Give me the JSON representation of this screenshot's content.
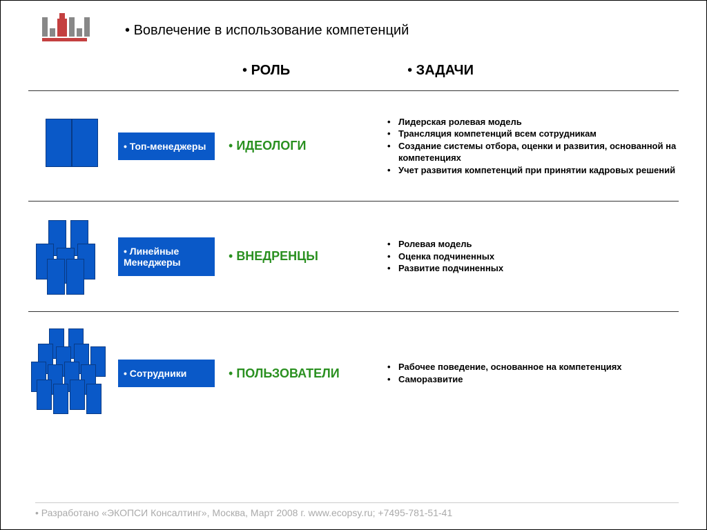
{
  "colors": {
    "block_blue": "#0a59c8",
    "role_green": "#2a9020",
    "logo_red": "#c44040",
    "text_black": "#000000",
    "footer_gray": "#aaaaaa",
    "background": "#ffffff"
  },
  "typography": {
    "title_fontsize_pt": 15,
    "header_fontsize_pt": 15,
    "role_fontsize_pt": 14,
    "group_fontsize_pt": 11,
    "task_fontsize_pt": 10,
    "footer_fontsize_pt": 11,
    "font_family": "Arial"
  },
  "title": "Вовлечение в использование компетенций",
  "col_headers": {
    "role": "РОЛЬ",
    "tasks": "ЗАДАЧИ"
  },
  "rows": [
    {
      "group": "Топ-менеджеры",
      "role": "ИДЕОЛОГИ",
      "tasks": [
        "Лидерская ролевая модель",
        "Трансляция компетенций всем сотрудникам",
        "Создание системы отбора, оценки и развития, основанной на компетенциях",
        "Учет развития компетенций при принятии кадровых решений"
      ],
      "icon_block_count": 2
    },
    {
      "group": "Линейные Менеджеры",
      "role": "ВНЕДРЕНЦЫ",
      "tasks": [
        "Ролевая модель",
        "Оценка подчиненных",
        "Развитие подчиненных"
      ],
      "icon_block_count": 7
    },
    {
      "group": "Сотрудники",
      "role": "ПОЛЬЗОВАТЕЛИ",
      "tasks": [
        "Рабочее поведение, основанное на компетенциях",
        "Саморазвитие"
      ],
      "icon_block_count": 14
    }
  ],
  "footer": "Разработано «ЭКОПСИ Консалтинг», Москва, Март 2008 г. www.ecopsy.ru; +7495-781-51-41"
}
